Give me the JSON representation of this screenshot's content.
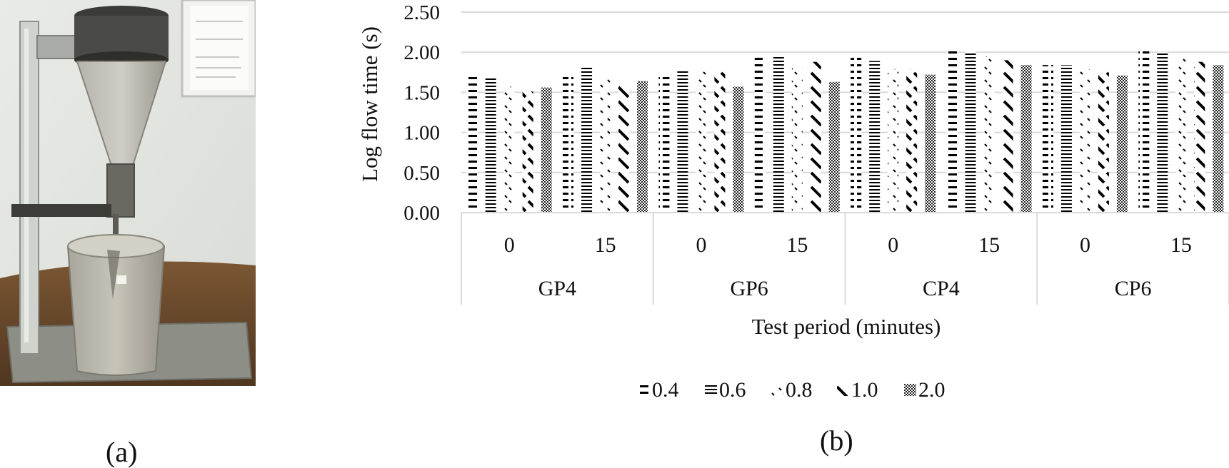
{
  "captions": {
    "a": "(a)",
    "b": "(b)"
  },
  "photo": {
    "subject": "flow-cone-apparatus-photo"
  },
  "colors": {
    "background": "#ffffff",
    "grid": "#d9d9d9",
    "ink": "#111111",
    "wall": "#e6e7e4",
    "table": "#6b4a2c",
    "metal": "#9aa09a"
  },
  "chart_data": {
    "type": "bar",
    "title": "",
    "xlabel": "Test period (minutes)",
    "ylabel": "Log flow time (s)",
    "ylim": [
      0,
      2.5
    ],
    "yticks": [
      "0.00",
      "0.50",
      "1.00",
      "1.50",
      "2.00",
      "2.50"
    ],
    "grid": true,
    "legend_position": "bottom",
    "groups": [
      "GP4",
      "GP6",
      "CP4",
      "CP6"
    ],
    "periods": [
      "0",
      "15"
    ],
    "categories": [
      "GP4 0",
      "GP4 15",
      "GP6 0",
      "GP6 15",
      "CP4 0",
      "CP4 15",
      "CP6 0",
      "CP6 15"
    ],
    "series": [
      {
        "name": "0.4",
        "pattern": "h-dash",
        "values": [
          1.72,
          1.73,
          1.73,
          1.94,
          1.93,
          2.04,
          1.84,
          2.04
        ]
      },
      {
        "name": "0.6",
        "pattern": "h-dense",
        "values": [
          1.68,
          1.83,
          1.78,
          1.94,
          1.89,
          2.01,
          1.84,
          2.0
        ]
      },
      {
        "name": "0.8",
        "pattern": "small-diag",
        "values": [
          1.57,
          1.69,
          1.78,
          1.8,
          1.79,
          1.95,
          1.79,
          1.94
        ]
      },
      {
        "name": "1.0",
        "pattern": "diag-dash",
        "values": [
          1.51,
          1.58,
          1.78,
          1.88,
          1.79,
          1.9,
          1.78,
          1.88
        ]
      },
      {
        "name": "2.0",
        "pattern": "checker",
        "values": [
          1.56,
          1.64,
          1.57,
          1.63,
          1.72,
          1.84,
          1.71,
          1.84
        ]
      }
    ]
  }
}
